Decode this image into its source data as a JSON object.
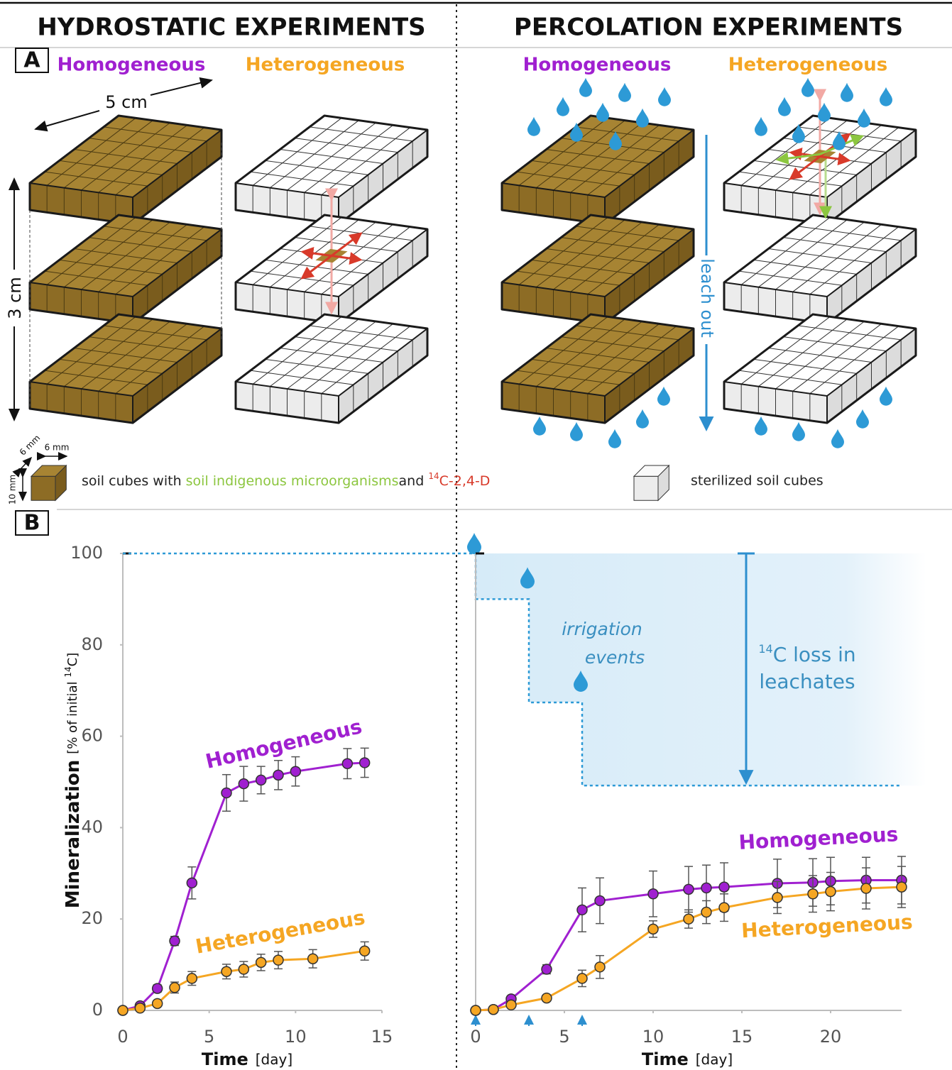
{
  "header": {
    "left_title": "HYDROSTATIC EXPERIMENTS",
    "right_title": "PERCOLATION EXPERIMENTS"
  },
  "panel_a": {
    "label": "A",
    "left_homogeneous": "Homogeneous",
    "left_heterogeneous": "Heterogeneous",
    "right_homogeneous": "Homogeneous",
    "right_heterogeneous": "Heterogeneous",
    "width_label": "5 cm",
    "height_label": "3 cm",
    "leach_label": "leach out",
    "cube_dims": [
      "6 mm",
      "6 mm",
      "10 mm"
    ],
    "legend": {
      "soil_prefix": "soil cubes with ",
      "microbes": "soil indigenous microorganisms",
      "and": "and ",
      "c14_sup": "14",
      "c14_rest": "C-2,4-D",
      "sterile": "sterilized soil cubes"
    }
  },
  "panel_b": {
    "label": "B",
    "irrigation": [
      "irrigation",
      "events"
    ],
    "loss_sup": "14",
    "loss": [
      "C loss in",
      "leachates"
    ]
  },
  "chart_data": [
    {
      "type": "line",
      "y_label": "Mineralization",
      "y_unit_prefix": "[% of initial ",
      "y_unit_sup": "14",
      "y_unit_suffix": "C]",
      "x_label": "Time",
      "x_unit": "[day]",
      "xlim": [
        0,
        15
      ],
      "xticks": [
        0,
        5,
        10,
        15
      ],
      "ylim": [
        0,
        100
      ],
      "yticks": [
        0,
        20,
        40,
        60,
        80,
        100
      ],
      "series": [
        {
          "name": "Homogeneous",
          "color": "#a020d0",
          "x": [
            0,
            1,
            2,
            3,
            4,
            6,
            7,
            8,
            9,
            10,
            13,
            14
          ],
          "values": [
            0,
            1,
            4.8,
            15.2,
            27.9,
            47.6,
            49.6,
            50.4,
            51.5,
            52.3,
            54,
            54.2
          ],
          "errors": [
            0,
            0.5,
            0.8,
            1,
            3.5,
            4,
            3.8,
            3,
            3.2,
            3.2,
            3.3,
            3.2
          ]
        },
        {
          "name": "Heterogeneous",
          "color": "#f5a623",
          "x": [
            0,
            1,
            2,
            3,
            4,
            6,
            7,
            8,
            9,
            11,
            14
          ],
          "values": [
            0,
            0.5,
            1.5,
            5,
            7,
            8.5,
            9,
            10.5,
            11,
            11.3,
            13
          ],
          "errors": [
            0,
            0.4,
            0.6,
            1.2,
            1.5,
            1.6,
            1.7,
            1.8,
            1.9,
            2,
            2
          ]
        }
      ]
    },
    {
      "type": "line",
      "x_label": "Time",
      "x_unit": "[day]",
      "xlim": [
        0,
        24
      ],
      "xticks": [
        0,
        5,
        10,
        15,
        20
      ],
      "ylim": [
        0,
        100
      ],
      "leachate": {
        "x": [
          0,
          0,
          3,
          3,
          6,
          6,
          24
        ],
        "values": [
          100,
          90,
          90,
          67.4,
          67.4,
          49.2,
          49.2
        ]
      },
      "irrigation_days": [
        0,
        3,
        6
      ],
      "series": [
        {
          "name": "Homogeneous",
          "color": "#a020d0",
          "x": [
            0,
            1,
            2,
            4,
            6,
            7,
            10,
            12,
            13,
            14,
            17,
            19,
            20,
            22,
            24
          ],
          "values": [
            0,
            0.2,
            2.5,
            9,
            22,
            24,
            25.5,
            26.5,
            26.8,
            27,
            27.8,
            28,
            28.3,
            28.5,
            28.5
          ],
          "errors": [
            0,
            0.3,
            0.5,
            1,
            4.8,
            5,
            5,
            5,
            5,
            5.3,
            5.3,
            5.2,
            5.2,
            5,
            5.2
          ]
        },
        {
          "name": "Heterogeneous",
          "color": "#f5a623",
          "x": [
            0,
            1,
            2,
            4,
            6,
            7,
            10,
            12,
            13,
            14,
            17,
            19,
            20,
            22,
            24
          ],
          "values": [
            0,
            0.2,
            1.2,
            2.7,
            7,
            9.5,
            17.8,
            20,
            21.5,
            22.5,
            24.7,
            25.5,
            26,
            26.7,
            27
          ],
          "errors": [
            0,
            0.2,
            0.4,
            0.6,
            1.8,
            2.5,
            1.8,
            2,
            2.5,
            3,
            3.5,
            4,
            4.2,
            4.5,
            4.5
          ]
        }
      ]
    }
  ]
}
